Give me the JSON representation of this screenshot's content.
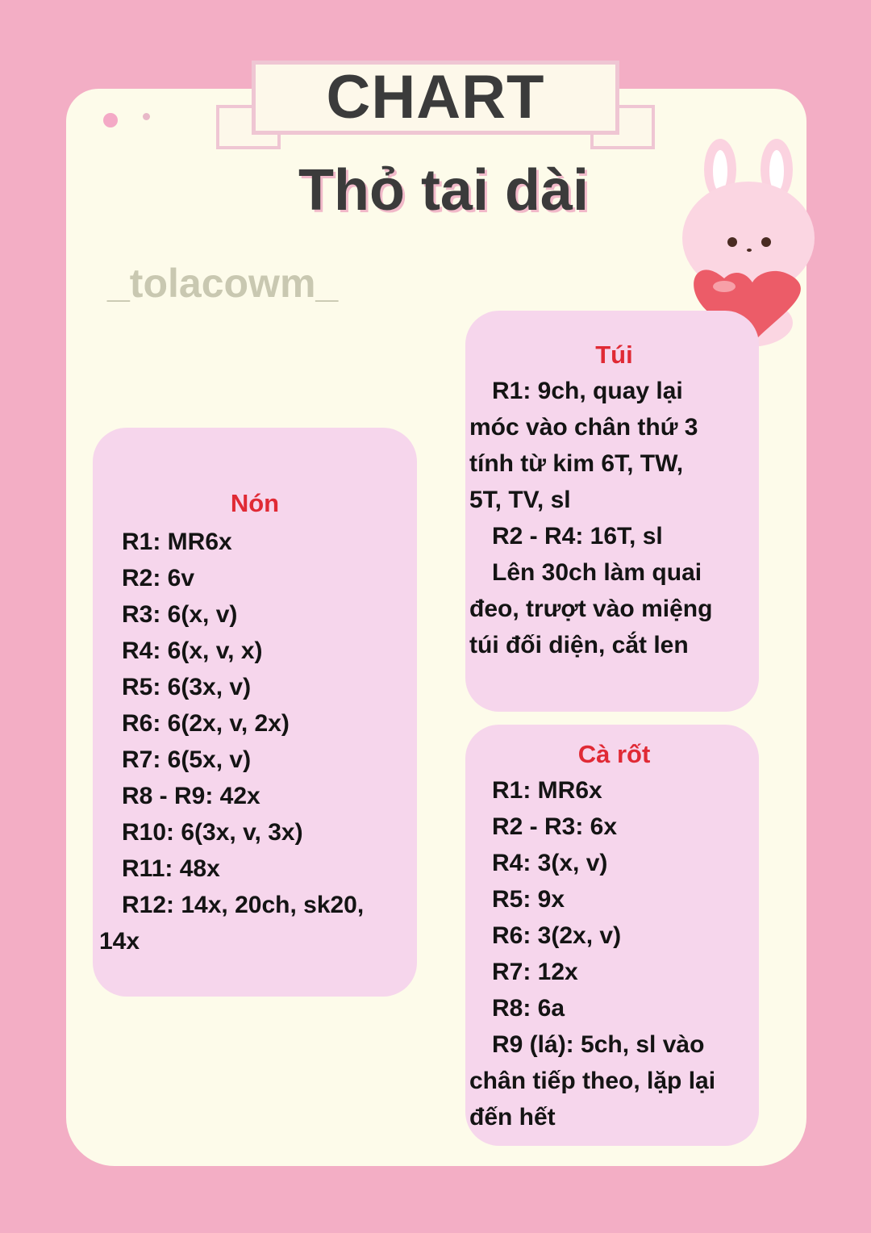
{
  "header": {
    "banner": "CHART",
    "title": "Thỏ tai dài",
    "brand": "_tolacowm_"
  },
  "sections": {
    "non": {
      "heading": "Nón",
      "lines": [
        {
          "text": "R1: MR6x",
          "indent": true
        },
        {
          "text": "R2: 6v",
          "indent": true
        },
        {
          "text": "R3: 6(x, v)",
          "indent": true
        },
        {
          "text": "R4: 6(x, v, x)",
          "indent": true
        },
        {
          "text": "R5: 6(3x, v)",
          "indent": true
        },
        {
          "text": "R6: 6(2x, v, 2x)",
          "indent": true
        },
        {
          "text": "R7: 6(5x, v)",
          "indent": true
        },
        {
          "text": "R8 - R9: 42x",
          "indent": true
        },
        {
          "text": "R10: 6(3x, v, 3x)",
          "indent": true
        },
        {
          "text": "R11: 48x",
          "indent": true
        },
        {
          "text": "R12: 14x, 20ch, sk20,",
          "indent": true
        },
        {
          "text": "14x",
          "indent": false
        }
      ]
    },
    "tui": {
      "heading": "Túi",
      "lines": [
        {
          "text": "R1: 9ch, quay lại",
          "indent": true
        },
        {
          "text": "móc vào chân thứ 3",
          "indent": false
        },
        {
          "text": "tính từ kim 6T, TW,",
          "indent": false
        },
        {
          "text": "5T, TV, sl",
          "indent": false
        },
        {
          "text": "R2 - R4: 16T, sl",
          "indent": true
        },
        {
          "text": "Lên 30ch làm quai",
          "indent": true
        },
        {
          "text": "đeo, trượt vào miệng",
          "indent": false
        },
        {
          "text": "túi đối diện, cắt len",
          "indent": false
        }
      ]
    },
    "carot": {
      "heading": "Cà rốt",
      "lines": [
        {
          "text": "R1: MR6x",
          "indent": true
        },
        {
          "text": "R2 - R3: 6x",
          "indent": true
        },
        {
          "text": "R4: 3(x, v)",
          "indent": true
        },
        {
          "text": "R5: 9x",
          "indent": true
        },
        {
          "text": "R6: 3(2x, v)",
          "indent": true
        },
        {
          "text": "R7: 12x",
          "indent": true
        },
        {
          "text": "R8: 6a",
          "indent": true
        },
        {
          "text": "R9 (lá): 5ch, sl vào",
          "indent": true
        },
        {
          "text": "chân tiếp theo, lặp lại",
          "indent": false
        },
        {
          "text": "đến hết",
          "indent": false
        }
      ]
    }
  },
  "colors": {
    "background": "#f3aec5",
    "card": "#fdfbea",
    "box": "#f6d6ec",
    "heading": "#e02a35",
    "text": "#141414"
  },
  "decorations": [
    "bunny-holding-heart-illustration"
  ]
}
